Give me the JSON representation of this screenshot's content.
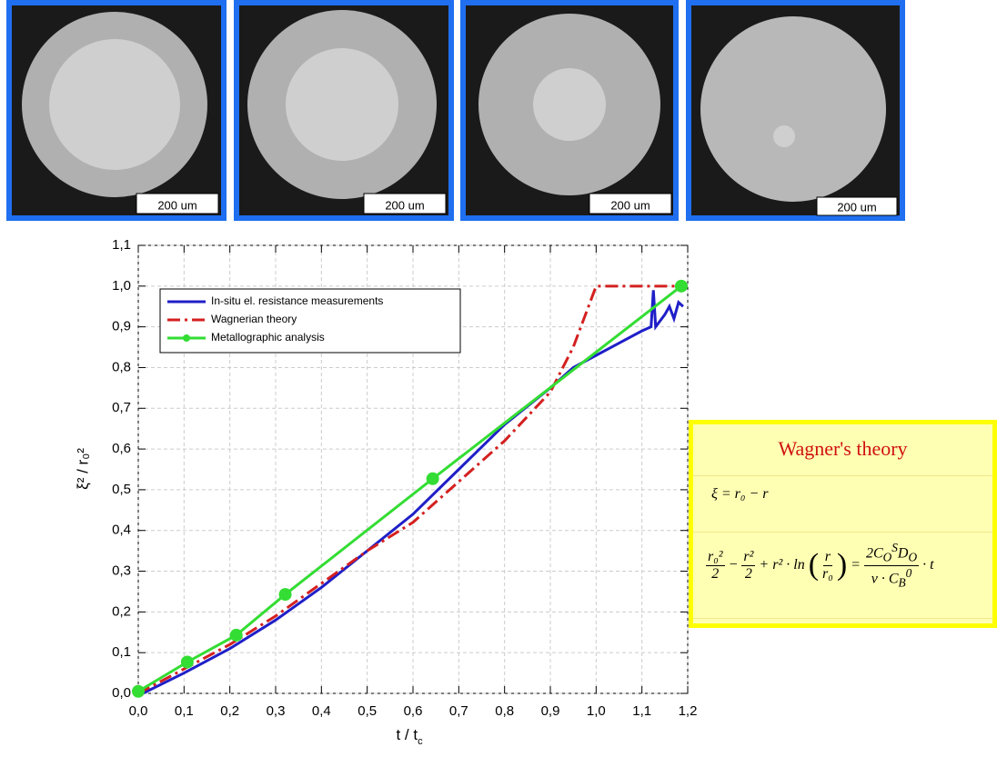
{
  "images": [
    {
      "scale_label": "200 um"
    },
    {
      "scale_label": "200 um"
    },
    {
      "scale_label": "200 um"
    },
    {
      "scale_label": "200 um"
    }
  ],
  "chart_data": {
    "type": "line",
    "x_label": "t / t",
    "x_label_subscript": "c",
    "y_label": "ξ² / r₀²",
    "xlim": [
      0,
      1.2
    ],
    "xticks": [
      {
        "value": 0,
        "label": "0,0"
      },
      {
        "value": 0.1,
        "label": "0,1"
      },
      {
        "value": 0.2,
        "label": "0,2"
      },
      {
        "value": 0.3,
        "label": "0,3"
      },
      {
        "value": 0.4,
        "label": "0,4"
      },
      {
        "value": 0.5,
        "label": "0,5"
      },
      {
        "value": 0.6,
        "label": "0,6"
      },
      {
        "value": 0.7,
        "label": "0,7"
      },
      {
        "value": 0.8,
        "label": "0,8"
      },
      {
        "value": 0.9,
        "label": "0,9"
      },
      {
        "value": 1.0,
        "label": "1,0"
      },
      {
        "value": 1.1,
        "label": "1,1"
      },
      {
        "value": 1.2,
        "label": "1,2"
      }
    ],
    "ylim": [
      0,
      1.1
    ],
    "yticks": [
      {
        "value": 0,
        "label": "0,0"
      },
      {
        "value": 0.1,
        "label": "0,1"
      },
      {
        "value": 0.2,
        "label": "0,2"
      },
      {
        "value": 0.3,
        "label": "0,3"
      },
      {
        "value": 0.4,
        "label": "0,4"
      },
      {
        "value": 0.5,
        "label": "0,5"
      },
      {
        "value": 0.6,
        "label": "0,6"
      },
      {
        "value": 0.7,
        "label": "0,7"
      },
      {
        "value": 0.8,
        "label": "0,8"
      },
      {
        "value": 0.9,
        "label": "0,9"
      },
      {
        "value": 1.0,
        "label": "1,0"
      },
      {
        "value": 1.1,
        "label": "1,1"
      }
    ],
    "grid": true,
    "legend": "upper left",
    "series": [
      {
        "name": "In-situ el. resistance measurements",
        "color": "#1f1fc8",
        "dash": "solid",
        "marker": false,
        "x": [
          0.01,
          0.1,
          0.2,
          0.3,
          0.4,
          0.5,
          0.6,
          0.7,
          0.8,
          0.9,
          0.95,
          1.0,
          1.05,
          1.1,
          1.12,
          1.125,
          1.13,
          1.15,
          1.16,
          1.17,
          1.18,
          1.19
        ],
        "values": [
          0.0,
          0.05,
          0.11,
          0.18,
          0.26,
          0.35,
          0.44,
          0.55,
          0.66,
          0.75,
          0.8,
          0.83,
          0.86,
          0.89,
          0.9,
          0.99,
          0.9,
          0.93,
          0.95,
          0.92,
          0.96,
          0.95
        ]
      },
      {
        "name": "Wagnerian theory",
        "color": "#d42020",
        "dash": "dashdot",
        "marker": false,
        "x": [
          0.0,
          0.1,
          0.2,
          0.3,
          0.4,
          0.5,
          0.6,
          0.7,
          0.8,
          0.9,
          0.95,
          1.0,
          1.18
        ],
        "values": [
          0.0,
          0.06,
          0.12,
          0.19,
          0.27,
          0.35,
          0.42,
          0.52,
          0.62,
          0.74,
          0.85,
          1.0,
          1.0
        ]
      },
      {
        "name": "Metallographic analysis",
        "color": "#33dd33",
        "dash": "solid",
        "marker": true,
        "x": [
          0.0,
          0.107,
          0.214,
          0.321,
          0.643,
          1.186
        ],
        "values": [
          0.005,
          0.077,
          0.143,
          0.243,
          0.527,
          1.0
        ]
      }
    ]
  },
  "wagner_box": {
    "title": "Wagner's theory",
    "equation_1": "ξ = r₀ − r",
    "equation_2": {
      "t1_num": "r₀²",
      "t1_den": "2",
      "op1": "−",
      "t2_num": "r²",
      "t2_den": "2",
      "op2": "+ r² · ln",
      "lparen": "(",
      "ln_num": "r",
      "ln_den": "r₀",
      "rparen": ")",
      "eq": "=",
      "rhs_num": [
        "2C",
        "O",
        "S",
        "D",
        "O"
      ],
      "rhs_den": [
        "ν · C",
        "B",
        "0"
      ],
      "tail": "· t"
    }
  }
}
